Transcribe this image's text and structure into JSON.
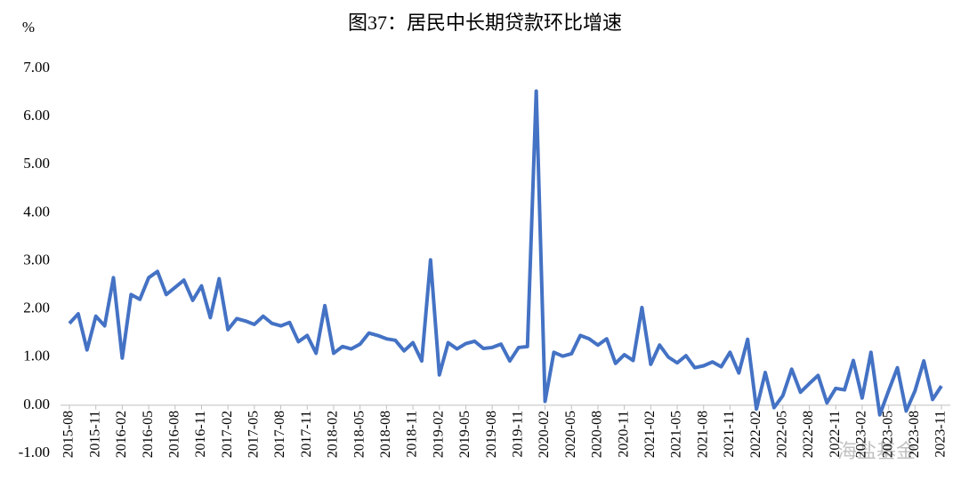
{
  "chart_data": {
    "type": "line",
    "title": "图37：居民中长期贷款环比增速",
    "y_unit": "%",
    "watermark": "海盐基金",
    "color": "#4472c4",
    "categories": [
      "2015-08",
      null,
      null,
      "2015-11",
      null,
      null,
      "2016-02",
      null,
      null,
      "2016-05",
      null,
      null,
      "2016-08",
      null,
      null,
      "2016-11",
      null,
      null,
      "2017-02",
      null,
      null,
      "2017-05",
      null,
      null,
      "2017-08",
      null,
      null,
      "2017-11",
      null,
      null,
      "2018-02",
      null,
      null,
      "2018-05",
      null,
      null,
      "2018-08",
      null,
      null,
      "2018-11",
      null,
      null,
      "2019-02",
      null,
      null,
      "2019-05",
      null,
      null,
      "2019-08",
      null,
      null,
      "2019-11",
      null,
      null,
      "2020-02",
      null,
      null,
      "2020-05",
      null,
      null,
      "2020-08",
      null,
      null,
      "2020-11",
      null,
      null,
      "2021-02",
      null,
      null,
      "2021-05",
      null,
      null,
      "2021-08",
      null,
      null,
      "2021-11",
      null,
      null,
      "2022-02",
      null,
      null,
      "2022-05",
      null,
      null,
      "2022-08",
      null,
      null,
      "2022-11",
      null,
      null,
      "2023-02",
      null,
      null,
      "2023-05",
      null,
      null,
      "2023-08",
      null,
      null,
      "2023-11"
    ],
    "values": [
      1.7,
      1.9,
      1.15,
      1.85,
      1.65,
      2.65,
      0.98,
      2.3,
      2.2,
      2.65,
      2.78,
      2.3,
      2.45,
      2.6,
      2.18,
      2.48,
      1.82,
      2.63,
      1.57,
      1.8,
      1.75,
      1.68,
      1.85,
      1.7,
      1.65,
      1.72,
      1.32,
      1.45,
      1.08,
      2.07,
      1.08,
      1.22,
      1.17,
      1.27,
      1.5,
      1.45,
      1.38,
      1.35,
      1.13,
      1.3,
      0.92,
      3.02,
      0.63,
      1.3,
      1.17,
      1.28,
      1.33,
      1.18,
      1.2,
      1.27,
      0.92,
      1.2,
      1.22,
      6.53,
      0.08,
      1.1,
      1.02,
      1.07,
      1.45,
      1.38,
      1.25,
      1.38,
      0.87,
      1.05,
      0.93,
      2.03,
      0.85,
      1.25,
      1.0,
      0.88,
      1.03,
      0.78,
      0.82,
      0.9,
      0.8,
      1.1,
      0.67,
      1.37,
      -0.08,
      0.68,
      -0.05,
      0.2,
      0.75,
      0.27,
      0.45,
      0.62,
      0.05,
      0.35,
      0.32,
      0.93,
      0.15,
      1.1,
      -0.2,
      0.3,
      0.78,
      -0.12,
      0.3,
      0.92,
      0.12,
      0.4
    ],
    "ylim": [
      -1,
      7
    ],
    "yticks": [
      {
        "value": -1,
        "label": "-1.00"
      },
      {
        "value": 0,
        "label": "0.00"
      },
      {
        "value": 1,
        "label": "1.00"
      },
      {
        "value": 2,
        "label": "2.00"
      },
      {
        "value": 3,
        "label": "3.00"
      },
      {
        "value": 4,
        "label": "4.00"
      },
      {
        "value": 5,
        "label": "5.00"
      },
      {
        "value": 6,
        "label": "6.00"
      },
      {
        "value": 7,
        "label": "7.00"
      }
    ],
    "grid": false
  }
}
